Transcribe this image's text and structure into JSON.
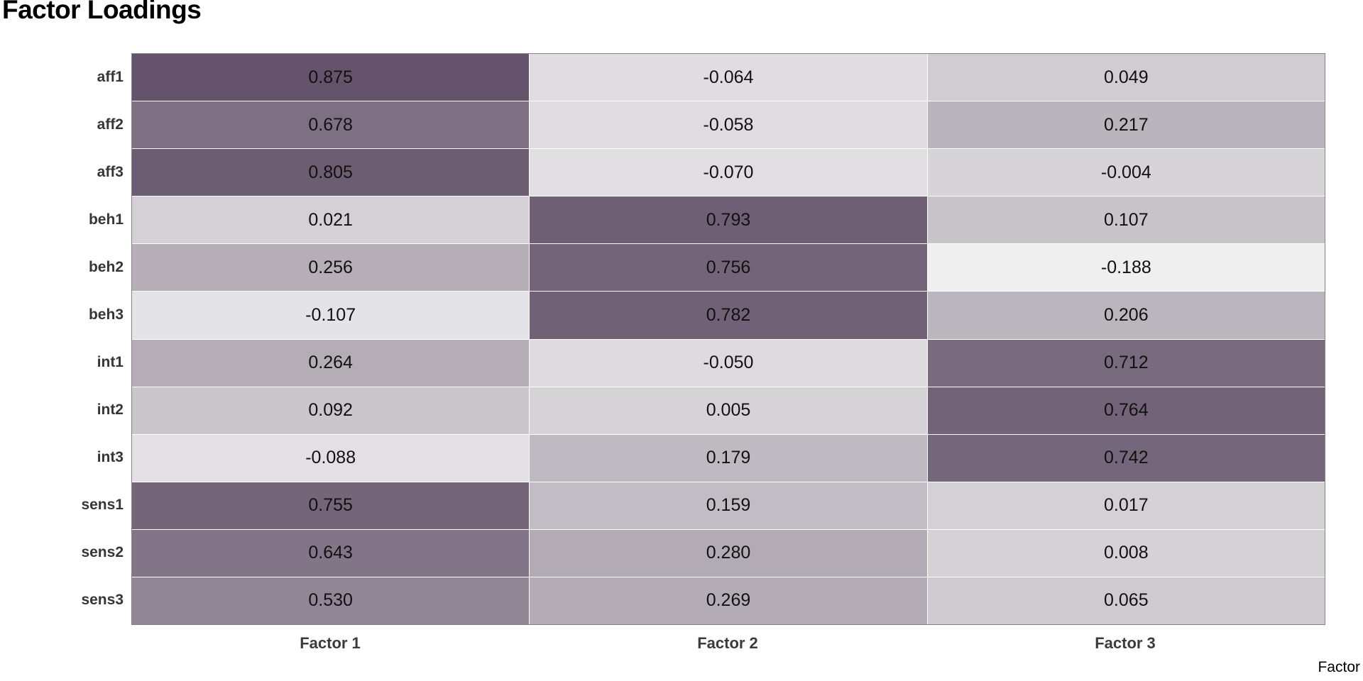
{
  "title": "Factor Loadings",
  "chart_data": {
    "type": "heatmap",
    "title": "Factor Loadings",
    "xlabel": "Factor",
    "columns": [
      "Factor 1",
      "Factor 2",
      "Factor 3"
    ],
    "rows": [
      "aff1",
      "aff2",
      "aff3",
      "beh1",
      "beh2",
      "beh3",
      "int1",
      "int2",
      "int3",
      "sens1",
      "sens2",
      "sens3"
    ],
    "values": [
      [
        0.875,
        -0.064,
        0.049
      ],
      [
        0.678,
        -0.058,
        0.217
      ],
      [
        0.805,
        -0.07,
        -0.004
      ],
      [
        0.021,
        0.793,
        0.107
      ],
      [
        0.256,
        0.756,
        -0.188
      ],
      [
        -0.107,
        0.782,
        0.206
      ],
      [
        0.264,
        -0.05,
        0.712
      ],
      [
        0.092,
        0.005,
        0.764
      ],
      [
        -0.088,
        0.179,
        0.742
      ],
      [
        0.755,
        0.159,
        0.017
      ],
      [
        0.643,
        0.28,
        0.008
      ],
      [
        0.53,
        0.269,
        0.065
      ]
    ],
    "value_decimals": 3,
    "value_range": [
      -0.188,
      0.875
    ],
    "colormap": {
      "low": "#efefef",
      "high": "#64536a"
    },
    "grid_line_color": "#828282",
    "background": "#ffffff",
    "legend": "none",
    "grid": "on"
  }
}
